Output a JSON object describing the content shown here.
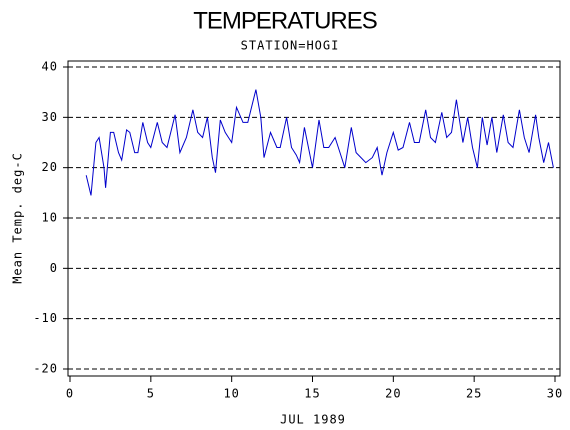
{
  "chart_data": {
    "type": "line",
    "title": "TEMPERATURES",
    "subtitle": "STATION=HOGI",
    "x_label": "JUL 1989",
    "y_label": "Mean Temp. deg-C",
    "xlim": [
      0,
      30
    ],
    "xticks": [
      0,
      5,
      10,
      15,
      20,
      25,
      30
    ],
    "ylim": [
      -20,
      40
    ],
    "yticks": [
      -20,
      -10,
      0,
      10,
      20,
      30,
      40
    ],
    "grid": true,
    "series": [
      {
        "name": "Mean Temp.",
        "color": "#0000cc",
        "x": [
          1.0,
          1.3,
          1.6,
          1.8,
          2.1,
          2.2,
          2.5,
          2.7,
          3.0,
          3.2,
          3.5,
          3.7,
          4.0,
          4.2,
          4.5,
          4.8,
          5.0,
          5.4,
          5.7,
          6.0,
          6.5,
          6.8,
          7.2,
          7.6,
          7.9,
          8.2,
          8.5,
          8.8,
          9.0,
          9.3,
          9.6,
          10.0,
          10.3,
          10.7,
          11.0,
          11.5,
          11.8,
          12.0,
          12.4,
          12.8,
          13.0,
          13.4,
          13.7,
          14.0,
          14.2,
          14.5,
          15.0,
          15.4,
          15.7,
          16.0,
          16.4,
          16.8,
          17.0,
          17.4,
          17.7,
          18.0,
          18.3,
          18.7,
          19.0,
          19.3,
          19.6,
          20.0,
          20.3,
          20.6,
          21.0,
          21.3,
          21.6,
          22.0,
          22.3,
          22.6,
          23.0,
          23.3,
          23.6,
          23.9,
          24.3,
          24.6,
          24.9,
          25.2,
          25.5,
          25.8,
          26.1,
          26.4,
          26.8,
          27.1,
          27.4,
          27.8,
          28.1,
          28.4,
          28.8,
          29.0,
          29.3,
          29.6,
          29.9
        ],
        "values": [
          18.5,
          14.5,
          25,
          26,
          20,
          16,
          27,
          27,
          23,
          21.5,
          27.5,
          27,
          23,
          23,
          29,
          25,
          24,
          29,
          25,
          24,
          30.5,
          23,
          26,
          31.5,
          27,
          26,
          30,
          22,
          19,
          29.5,
          27,
          25,
          32,
          29,
          29,
          35.5,
          30,
          22,
          27,
          24,
          24,
          30,
          24,
          22.5,
          21,
          28,
          20,
          29.5,
          24,
          24,
          26,
          22,
          20,
          28,
          23,
          22,
          21,
          22,
          24,
          18.5,
          23,
          27,
          23.5,
          24,
          29,
          25,
          25,
          31.5,
          26,
          25,
          31,
          26,
          27,
          33.5,
          25,
          30,
          24,
          20,
          30,
          24.5,
          30,
          23,
          30.5,
          25,
          24,
          31.5,
          26,
          23,
          30.5,
          26,
          21,
          25,
          20
        ]
      }
    ]
  }
}
